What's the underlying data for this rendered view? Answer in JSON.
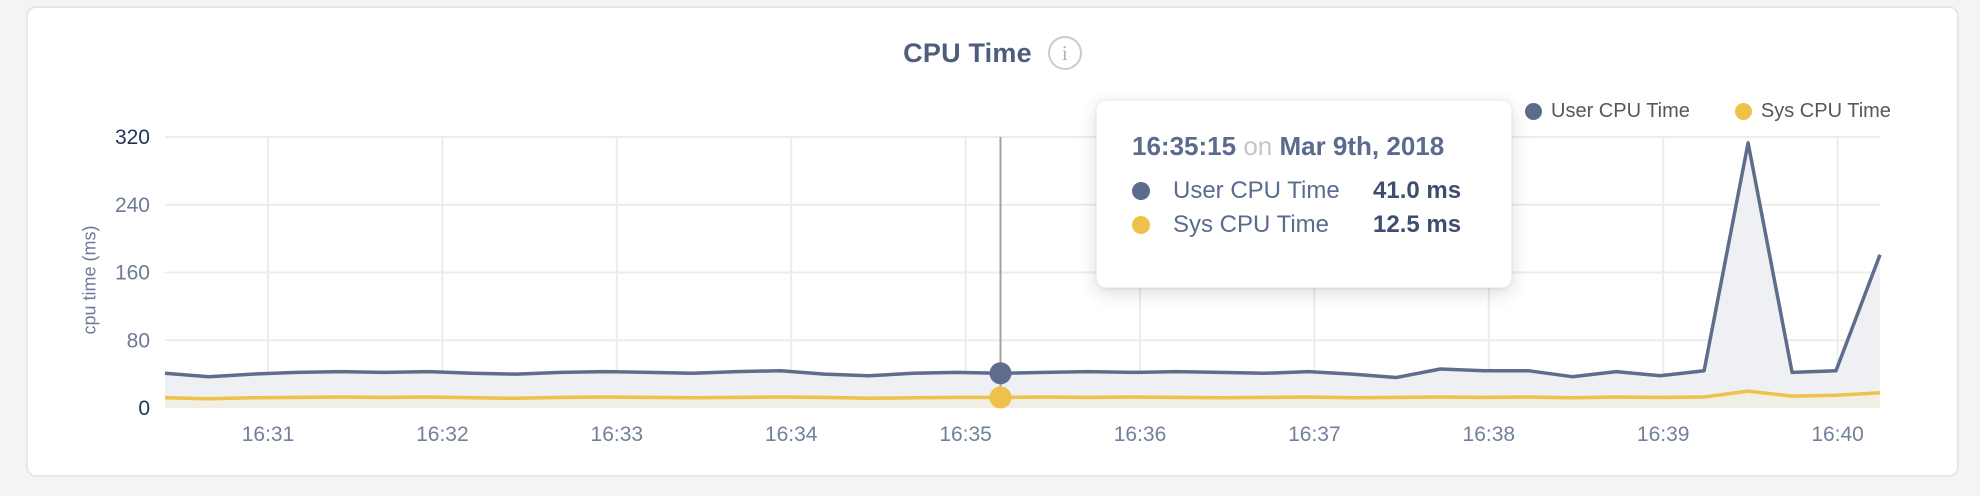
{
  "card": {
    "title": "CPU Time"
  },
  "icons": {
    "info": "i"
  },
  "legend": [
    {
      "label": "User CPU Time",
      "color": "#5d6b8c"
    },
    {
      "label": "Sys CPU Time",
      "color": "#eec24a"
    }
  ],
  "tooltip": {
    "time": "16:35:15",
    "connector": "on",
    "date": "Mar 9th, 2018",
    "rows": [
      {
        "label": "User CPU Time",
        "value": "41.0 ms",
        "color": "#5d6b8c"
      },
      {
        "label": "Sys CPU Time",
        "value": "12.5 ms",
        "color": "#eec24a"
      }
    ]
  },
  "chart_data": {
    "type": "area",
    "title": "CPU Time",
    "xlabel": "",
    "ylabel": "cpu time (ms)",
    "ylim": [
      0,
      320
    ],
    "y_ticks": [
      0,
      80,
      160,
      240,
      320
    ],
    "x_ticks": [
      "16:31",
      "16:32",
      "16:33",
      "16:34",
      "16:35",
      "16:36",
      "16:37",
      "16:38",
      "16:39",
      "16:40"
    ],
    "grid": true,
    "legend_position": "top-right",
    "x": [
      "16:30:30",
      "16:30:45",
      "16:31:00",
      "16:31:15",
      "16:31:30",
      "16:31:45",
      "16:32:00",
      "16:32:15",
      "16:32:30",
      "16:32:45",
      "16:33:00",
      "16:33:15",
      "16:33:30",
      "16:33:45",
      "16:34:00",
      "16:34:15",
      "16:34:30",
      "16:34:45",
      "16:35:00",
      "16:35:15",
      "16:35:30",
      "16:35:45",
      "16:36:00",
      "16:36:15",
      "16:36:30",
      "16:36:45",
      "16:37:00",
      "16:37:15",
      "16:37:30",
      "16:37:45",
      "16:38:00",
      "16:38:15",
      "16:38:30",
      "16:38:45",
      "16:39:00",
      "16:39:15",
      "16:39:30",
      "16:39:45",
      "16:40:00",
      "16:40:15"
    ],
    "series": [
      {
        "name": "User CPU Time",
        "color": "#5f6d8d",
        "fill": "#eef0f4",
        "values": [
          41,
          37,
          40,
          42,
          43,
          42,
          43,
          41,
          40,
          42,
          43,
          42,
          41,
          43,
          44,
          40,
          38,
          41,
          42,
          41,
          42,
          43,
          42,
          43,
          42,
          41,
          43,
          40,
          36,
          46,
          44,
          44,
          37,
          43,
          38,
          44,
          313,
          42,
          44,
          181
        ]
      },
      {
        "name": "Sys CPU Time",
        "color": "#eec24a",
        "fill": "#f1eee3",
        "values": [
          12,
          11,
          12,
          12.5,
          13,
          12.5,
          13,
          12,
          11.5,
          12.5,
          13,
          12.5,
          12,
          12.5,
          13,
          12.5,
          11.5,
          12,
          12.5,
          12.5,
          13,
          12.5,
          13,
          12.5,
          12,
          12.5,
          13,
          12,
          12.5,
          13,
          12.5,
          13,
          12,
          13,
          12.5,
          13,
          20,
          14,
          15,
          18
        ]
      }
    ],
    "selected_index": 19,
    "selected_point": {
      "time": "16:35:15",
      "date": "Mar 9th, 2018",
      "user_cpu_ms": 41.0,
      "sys_cpu_ms": 12.5
    }
  },
  "style": {
    "grid_color": "#ececec",
    "crosshair_color": "#a2a2a2",
    "tick_color": "#6e7b96",
    "tick_color_extreme": "#1f3456",
    "x_tick_color": "#72809b"
  }
}
